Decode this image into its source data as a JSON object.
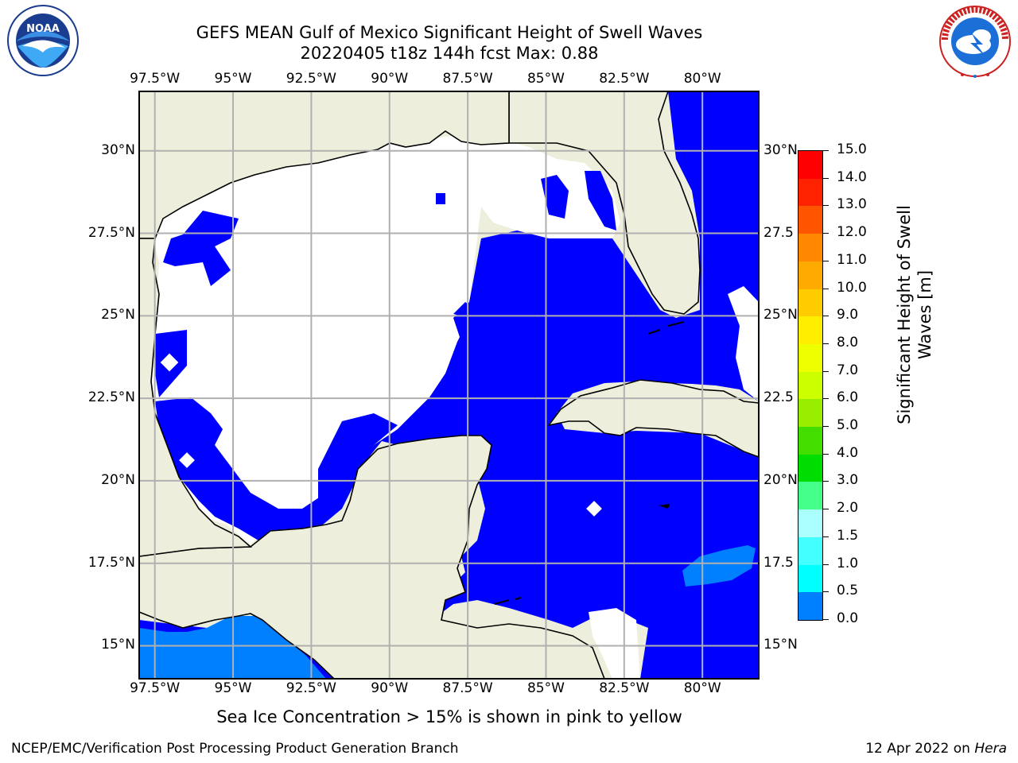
{
  "header": {
    "title_line1": "GEFS MEAN Gulf of Mexico Significant Height of Swell Waves",
    "title_line2": "20220405 t18z 144h fcst   Max: 0.88"
  },
  "logos": {
    "left": {
      "name": "noaa-logo",
      "text": "NOAA",
      "ring_text": "NATIONAL OCEANIC AND ATMOSPHERIC ADMINISTRATION · U.S. DEPARTMENT OF COMMERCE"
    },
    "right": {
      "name": "nws-logo",
      "ring_text": "NATIONAL WEATHER SERVICE"
    }
  },
  "map": {
    "lon_ticks": [
      "97.5°W",
      "95°W",
      "92.5°W",
      "90°W",
      "87.5°W",
      "85°W",
      "82.5°W",
      "80°W"
    ],
    "lat_ticks": [
      "30°N",
      "27.5°N",
      "25°N",
      "22.5°N",
      "20°N",
      "17.5°N",
      "15°N"
    ],
    "lat_ticks_right": [
      "30°N",
      "27.5",
      "25°N",
      "22.5",
      "20°N",
      "17.5",
      "15°N"
    ],
    "lon_values": [
      -97.5,
      -95,
      -92.5,
      -90,
      -87.5,
      -85,
      -82.5,
      -80
    ],
    "lat_values": [
      30,
      27.5,
      25,
      22.5,
      20,
      17.5,
      15
    ],
    "extent": {
      "lon_min": -98,
      "lon_max": -78.2,
      "lat_min": 14,
      "lat_max": 31.8
    },
    "colors": {
      "land": "#eeeedc",
      "no_data": "#ffffff",
      "band_0_05": "#0000ff",
      "band_05_1": "#0080ff",
      "grid": "#b0b0b0"
    }
  },
  "colorbar": {
    "label": "Significant Height of Swell Waves [m]",
    "label_line1": "Significant Height of Swell",
    "label_line2": "Waves [m]",
    "ticks": [
      "15.0",
      "14.0",
      "13.0",
      "12.0",
      "11.0",
      "10.0",
      "9.0",
      "8.0",
      "7.0",
      "6.0",
      "5.0",
      "4.0",
      "3.0",
      "2.0",
      "1.5",
      "1.0",
      "0.5",
      "0.0"
    ],
    "colors": [
      "#ff0000",
      "#ff2200",
      "#ff5500",
      "#ff8800",
      "#ffaa00",
      "#ffcc00",
      "#ffee00",
      "#eeff00",
      "#ccff00",
      "#99ee00",
      "#44dd00",
      "#00dd00",
      "#44ff88",
      "#aaffff",
      "#44ffff",
      "#00ffff",
      "#0080ff",
      "#0000ff"
    ]
  },
  "note": "Sea Ice Concentration > 15% is shown in pink to yellow",
  "footer": {
    "left": "NCEP/EMC/Verification Post Processing Product Generation Branch",
    "date": "12 Apr 2022 on ",
    "system": "Hera"
  }
}
